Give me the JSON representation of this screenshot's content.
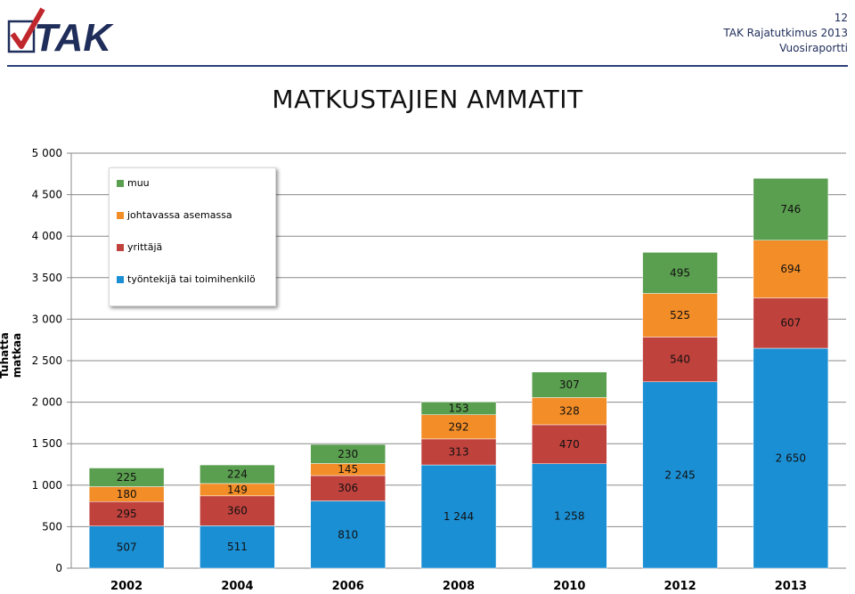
{
  "header": {
    "logo_text": "TAK",
    "page_number": "12",
    "report_title": "TAK Rajatutkimus 2013",
    "report_subtitle": "Vuosiraportti"
  },
  "page_title": "MATKUSTAJIEN AMMATIT",
  "colors": {
    "muu": "#5a9e4f",
    "johtavassa": "#f28d28",
    "yrittaja": "#c0423d",
    "tyontekija": "#1b8fd4",
    "brand": "#1f2d5a"
  },
  "chart_data": {
    "type": "bar",
    "stacked": true,
    "categories": [
      "2002",
      "2004",
      "2006",
      "2008",
      "2010",
      "2012",
      "2013"
    ],
    "series": [
      {
        "name": "työntekijä tai toimihenkilö",
        "values": [
          507,
          511,
          810,
          1244,
          1258,
          2245,
          2650
        ],
        "labels": [
          "507",
          "511",
          "810",
          "1 244",
          "1 258",
          "2 245",
          "2 650"
        ]
      },
      {
        "name": "yrittäjä",
        "values": [
          295,
          360,
          306,
          313,
          470,
          540,
          607
        ],
        "labels": [
          "295",
          "360",
          "306",
          "313",
          "470",
          "540",
          "607"
        ]
      },
      {
        "name": "johtavassa asemassa",
        "values": [
          180,
          149,
          145,
          292,
          328,
          525,
          694
        ],
        "labels": [
          "180",
          "149",
          "145",
          "292",
          "328",
          "525",
          "694"
        ]
      },
      {
        "name": "muu",
        "values": [
          225,
          224,
          230,
          153,
          307,
          495,
          746
        ],
        "labels": [
          "225",
          "224",
          "230",
          "153",
          "307",
          "495",
          "746"
        ]
      }
    ],
    "ylabel": "Tuhatta matkaa",
    "xlabel": "",
    "ylim": [
      0,
      5000
    ],
    "yticks": [
      0,
      500,
      1000,
      1500,
      2000,
      2500,
      3000,
      3500,
      4000,
      4500,
      5000
    ],
    "ytick_labels": [
      "0",
      "500",
      "1 000",
      "1 500",
      "2 000",
      "2 500",
      "3 000",
      "3 500",
      "4 000",
      "4 500",
      "5 000"
    ],
    "grid": true,
    "legend_position": "top-left",
    "legend_order": [
      "muu",
      "johtavassa asemassa",
      "yrittäjä",
      "työntekijä tai toimihenkilö"
    ]
  }
}
